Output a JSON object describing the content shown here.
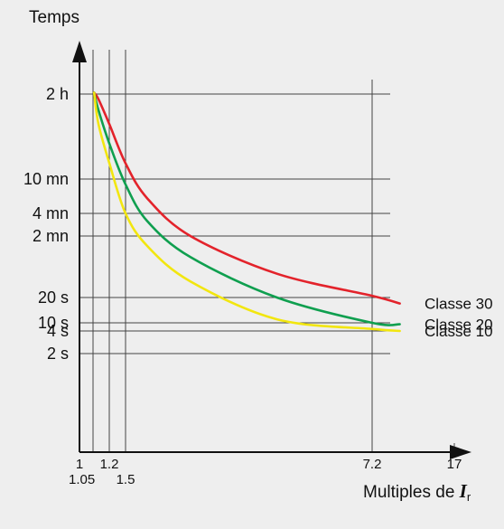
{
  "chart_data": {
    "type": "line",
    "ylabel": "Temps",
    "xlabel": "Multiples de ",
    "xlabel_symbol": "I",
    "xlabel_subscript": "r",
    "y_ticks": [
      {
        "label": "2 h",
        "value": 7200
      },
      {
        "label": "10 mn",
        "value": 600
      },
      {
        "label": "4 mn",
        "value": 240
      },
      {
        "label": "2 mn",
        "value": 120
      },
      {
        "label": "20 s",
        "value": 20
      },
      {
        "label": "10 s",
        "value": 10
      },
      {
        "label": "4 s",
        "value": 4
      },
      {
        "label": "2 s",
        "value": 2
      }
    ],
    "x_ticks": [
      {
        "label": "1",
        "value": 1,
        "row": 1
      },
      {
        "label": "1.05",
        "value": 1.05,
        "row": 2
      },
      {
        "label": "1.2",
        "value": 1.2,
        "row": 1
      },
      {
        "label": "1.5",
        "value": 1.5,
        "row": 2
      },
      {
        "label": "7.2",
        "value": 7.2,
        "row": 1
      },
      {
        "label": "17",
        "value": 17,
        "row": 1
      }
    ],
    "series": [
      {
        "name": "Classe 30",
        "color": "#e3232b",
        "x": [
          1.06,
          1.1,
          1.2,
          1.5,
          2.0,
          3.0,
          5.0,
          7.2,
          10.5
        ],
        "y": [
          7500,
          6200,
          3000,
          950,
          360,
          120,
          40,
          21,
          17
        ]
      },
      {
        "name": "Classe 20",
        "color": "#0f9f4f",
        "x": [
          1.06,
          1.1,
          1.2,
          1.5,
          2.0,
          3.0,
          5.0,
          7.2,
          10.5
        ],
        "y": [
          7500,
          4500,
          1700,
          520,
          190,
          65,
          20,
          10,
          8.5
        ]
      },
      {
        "name": "Classe 10",
        "color": "#f2e60f",
        "x": [
          1.06,
          1.1,
          1.2,
          1.5,
          2.0,
          3.0,
          5.0,
          7.2,
          10.5
        ],
        "y": [
          7500,
          3000,
          960,
          240,
          90,
          32,
          11,
          5,
          4
        ]
      }
    ]
  }
}
